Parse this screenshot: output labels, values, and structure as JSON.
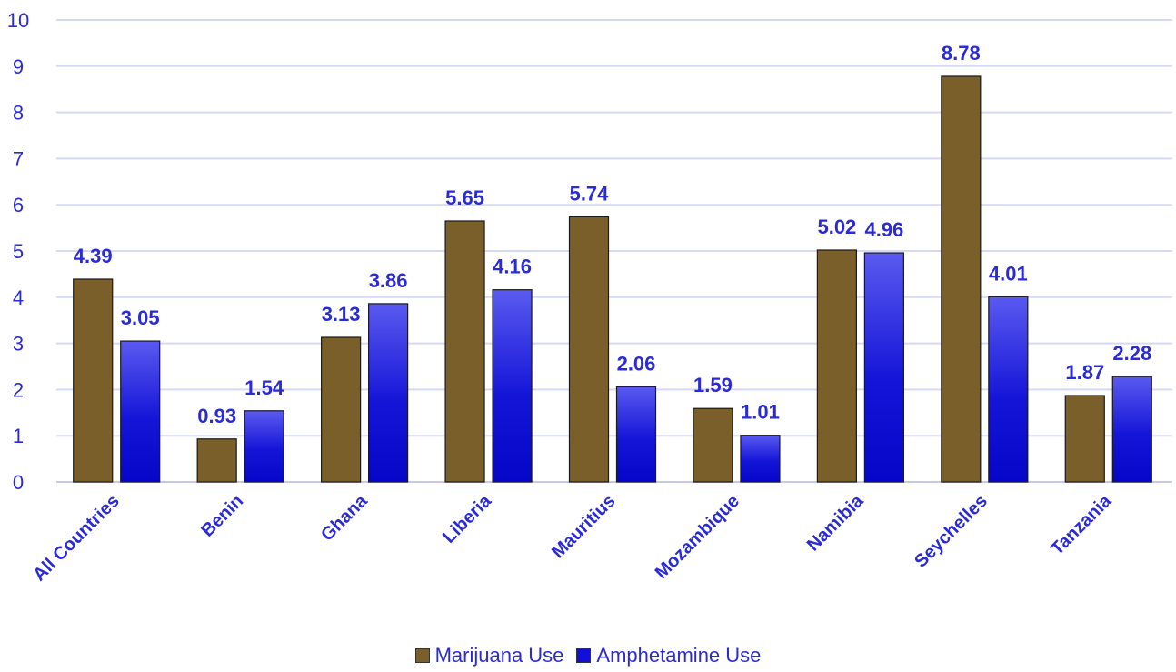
{
  "chart_data": {
    "type": "bar",
    "categories": [
      "All Countries",
      "Benin",
      "Ghana",
      "Liberia",
      "Mauritius",
      "Mozambique",
      "Namibia",
      "Seychelles",
      "Tanzania"
    ],
    "series": [
      {
        "name": "Marijuana Use",
        "values": [
          4.39,
          0.93,
          3.13,
          5.65,
          5.74,
          1.59,
          5.02,
          8.78,
          1.87
        ],
        "color": "#7a5f2b"
      },
      {
        "name": "Amphetamine Use",
        "values": [
          3.05,
          1.54,
          3.86,
          4.16,
          2.06,
          1.01,
          4.96,
          4.01,
          2.28
        ],
        "color": "#1010d8"
      }
    ],
    "yticks": [
      "0",
      "1",
      "2",
      "3",
      "4",
      "5",
      "6",
      "7",
      "8",
      "9",
      "10"
    ],
    "ylim": [
      0,
      10
    ],
    "grid": true,
    "legend_position": "bottom",
    "data_label_color": "#2b2bd6",
    "gridline_color": "#d6d9f2"
  }
}
